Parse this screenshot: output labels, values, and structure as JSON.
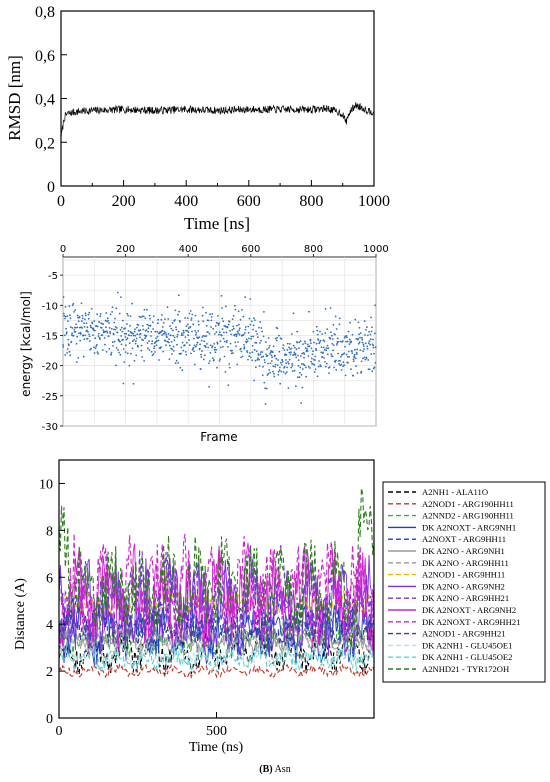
{
  "caption": {
    "letter": "(B)",
    "text": "Asn"
  },
  "chart_data": [
    {
      "type": "line",
      "xlabel": "Time [ns]",
      "ylabel": "RMSD [nm]",
      "xlim": [
        0,
        1000
      ],
      "ylim": [
        0,
        0.8
      ],
      "xticks": [
        "0",
        "200",
        "400",
        "600",
        "800",
        "1000"
      ],
      "yticks": [
        "0",
        "0,2",
        "0,4",
        "0,6",
        "0,8"
      ],
      "grid": false,
      "series": [
        {
          "color": "#000000",
          "x": [
            0,
            10,
            20,
            50,
            100,
            200,
            300,
            400,
            500,
            600,
            700,
            800,
            850,
            880,
            900,
            910,
            920,
            940,
            960,
            980,
            1000
          ],
          "y": [
            0.22,
            0.31,
            0.33,
            0.34,
            0.345,
            0.35,
            0.345,
            0.35,
            0.345,
            0.35,
            0.35,
            0.35,
            0.355,
            0.34,
            0.33,
            0.29,
            0.33,
            0.37,
            0.36,
            0.345,
            0.34
          ]
        }
      ]
    },
    {
      "type": "scatter",
      "xlabel": "Frame",
      "ylabel": "energy [kcal/mol]",
      "xlim": [
        0,
        1000
      ],
      "ylim": [
        -30,
        -2
      ],
      "xticks": [
        "0",
        "200",
        "400",
        "600",
        "800",
        "1000"
      ],
      "yticks": [
        "-5",
        "-10",
        "-15",
        "-20",
        "-25",
        "-30"
      ],
      "grid": true,
      "point_count": 1000,
      "series": [
        {
          "color": "#2f6fbd",
          "trend_x": [
            0,
            100,
            200,
            300,
            400,
            500,
            550,
            600,
            650,
            700,
            800,
            900,
            1000
          ],
          "trend_y": [
            -14,
            -14.5,
            -15,
            -15,
            -15.5,
            -15.5,
            -15,
            -16,
            -18.5,
            -18.5,
            -18,
            -17,
            -17
          ],
          "spread": 3
        }
      ]
    },
    {
      "type": "line",
      "xlabel": "Time (ns)",
      "ylabel": "Distance (A)",
      "xlim": [
        0,
        1000
      ],
      "ylim": [
        0,
        11
      ],
      "xticks": [
        "0",
        "500"
      ],
      "yticks": [
        "0",
        "2",
        "4",
        "6",
        "8",
        "10"
      ],
      "grid": false,
      "legend_position": "right",
      "series": [
        {
          "name": "A2NH1 - ALA11O",
          "color": "#000000",
          "dash": true,
          "mean": 2.8,
          "amp": 0.7
        },
        {
          "name": "A2NOD1 - ARG190HH11",
          "color": "#c0392b",
          "dash": true,
          "mean": 2.0,
          "amp": 0.2
        },
        {
          "name": "A2NND2 - ARG190HH11",
          "color": "#3cb043",
          "dash": true,
          "mean": 3.4,
          "amp": 0.6
        },
        {
          "name": "DK A2NOXT - ARG9NH1",
          "color": "#1f3fbf",
          "dash": false,
          "mean": 3.6,
          "amp": 1.0
        },
        {
          "name": "A2NOXT - ARG9HH11",
          "color": "#1f3fbf",
          "dash": true,
          "mean": 4.2,
          "amp": 1.0
        },
        {
          "name": "DK A2NO - ARG9NH1",
          "color": "#9a9a9a",
          "dash": false,
          "mean": 3.3,
          "amp": 0.4
        },
        {
          "name": "DK A2NO - ARG9HH11",
          "color": "#9a9a9a",
          "dash": true,
          "mean": 3.5,
          "amp": 0.4
        },
        {
          "name": "A2NOD1 - ARG9HH11",
          "color": "#e6b800",
          "dash": true,
          "mean": 4.9,
          "amp": 0.4
        },
        {
          "name": "DK A2NO - ARG9NH2",
          "color": "#7b2fe0",
          "dash": false,
          "mean": 4.8,
          "amp": 1.6
        },
        {
          "name": "DK A2NO - ARG9HH21",
          "color": "#7b2fe0",
          "dash": true,
          "mean": 5.2,
          "amp": 1.6
        },
        {
          "name": "DK A2NOXT - ARG9NH2",
          "color": "#d020d0",
          "dash": false,
          "mean": 5.0,
          "amp": 1.8
        },
        {
          "name": "DK A2NOXT - ARG9HH21",
          "color": "#d020d0",
          "dash": true,
          "mean": 5.4,
          "amp": 1.8
        },
        {
          "name": "A2NOD1 - ARG9HH21",
          "color": "#3a3aa0",
          "dash": true,
          "mean": 3.9,
          "amp": 0.6
        },
        {
          "name": "DK A2NH1 - GLU45OE1",
          "color": "#b8e0e8",
          "dash": true,
          "mean": 2.7,
          "amp": 0.4
        },
        {
          "name": "DK A2NH1 - GLU45OE2",
          "color": "#5fd0d0",
          "dash": true,
          "mean": 2.5,
          "amp": 0.4
        },
        {
          "name": "A2NHD21 - TYR172OH",
          "color": "#2e7d1a",
          "dash": true,
          "mean": 5.5,
          "amp": 1.8
        }
      ]
    }
  ]
}
